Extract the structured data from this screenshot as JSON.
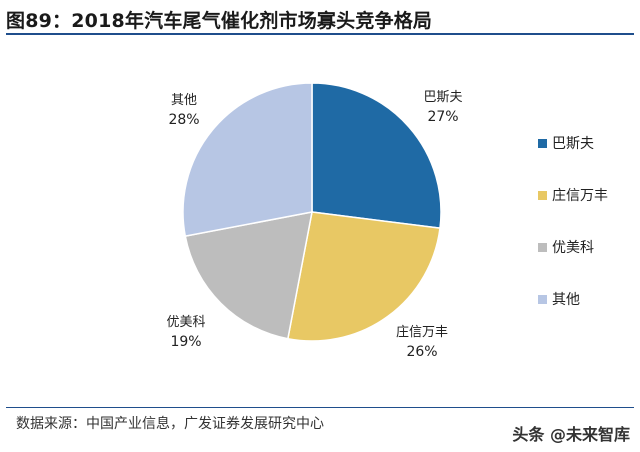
{
  "figure_title": "图89：2018年汽车尾气催化剂市场寡头竞争格局",
  "source_text": "数据来源：中国产业信息，广发证券发展研究中心",
  "watermark_text": "头条 @未来智库",
  "chart_data": {
    "type": "pie",
    "title": "2018年汽车尾气催化剂市场寡头竞争格局",
    "unit": "%",
    "categories": [
      "巴斯夫",
      "庄信万丰",
      "优美科",
      "其他"
    ],
    "values": [
      27,
      26,
      19,
      28
    ],
    "value_labels": [
      "27%",
      "26%",
      "19%",
      "28%"
    ],
    "colors": [
      "#1f6aa5",
      "#e8c864",
      "#bdbdbd",
      "#b7c6e4"
    ],
    "start_angle_deg": 0,
    "direction": "clockwise",
    "legend": {
      "position": "right",
      "entries": [
        "巴斯夫",
        "庄信万丰",
        "优美科",
        "其他"
      ]
    }
  }
}
